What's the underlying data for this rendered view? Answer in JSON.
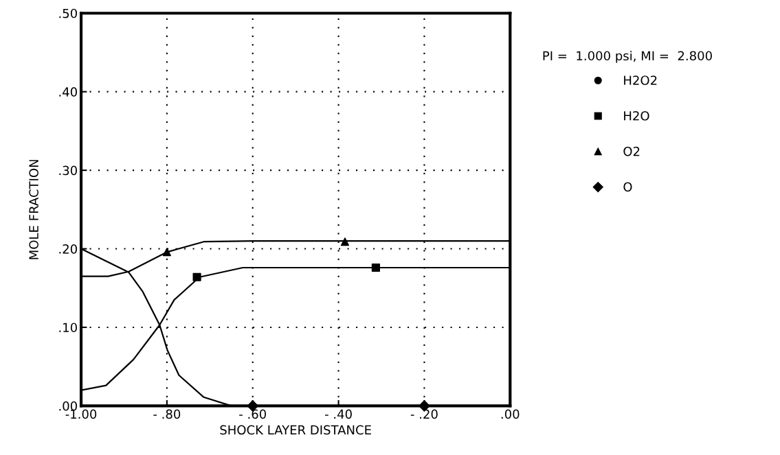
{
  "chart_data": {
    "type": "line",
    "xlabel": "SHOCK LAYER DISTANCE",
    "ylabel": "MOLE FRACTION",
    "annotations": [
      "PI =  1.000 psi, MI =  2.800"
    ],
    "xlim": [
      -1.0,
      0.0
    ],
    "ylim": [
      0.0,
      0.5
    ],
    "xticks": [
      {
        "value": -1.0,
        "label": "-1.00"
      },
      {
        "value": -0.8,
        "label": "- .80"
      },
      {
        "value": -0.6,
        "label": "- .60"
      },
      {
        "value": -0.4,
        "label": "- .40"
      },
      {
        "value": -0.2,
        "label": "- .20"
      },
      {
        "value": 0.0,
        "label": ".00"
      }
    ],
    "yticks": [
      {
        "value": 0.0,
        "label": ".00"
      },
      {
        "value": 0.1,
        "label": ".10"
      },
      {
        "value": 0.2,
        "label": ".20"
      },
      {
        "value": 0.3,
        "label": ".30"
      },
      {
        "value": 0.4,
        "label": ".40"
      },
      {
        "value": 0.5,
        "label": ".50"
      }
    ],
    "grid": true,
    "legend": "right",
    "series": [
      {
        "color": "#000000",
        "marker": "none",
        "x": [
          -1.0,
          -0.889,
          -0.857,
          -0.817,
          -0.799,
          -0.772,
          -0.714,
          -0.65,
          -0.6,
          -0.2,
          0.0
        ],
        "values": [
          0.2,
          0.17,
          0.146,
          0.103,
          0.071,
          0.039,
          0.011,
          0.0,
          0.0,
          0.0,
          0.0
        ]
      },
      {
        "color": "#000000",
        "marker": "none",
        "x": [
          -1.0,
          -0.937,
          -0.889,
          -0.799,
          -0.714,
          -0.6,
          0.0
        ],
        "values": [
          0.165,
          0.165,
          0.171,
          0.196,
          0.209,
          0.21,
          0.21
        ]
      },
      {
        "color": "#000000",
        "marker": "none",
        "x": [
          -1.0,
          -0.942,
          -0.878,
          -0.817,
          -0.783,
          -0.724,
          -0.623,
          -0.5,
          0.0
        ],
        "values": [
          0.02,
          0.026,
          0.059,
          0.103,
          0.135,
          0.164,
          0.176,
          0.176,
          0.176
        ]
      },
      {
        "type": "scatter",
        "name": "H2O2",
        "color": "#000000",
        "marker": "circle"
      },
      {
        "type": "scatter",
        "name": "H2O",
        "color": "#000000",
        "marker": "square",
        "x": [
          -0.73,
          -0.313
        ],
        "values": [
          0.164,
          0.176
        ]
      },
      {
        "type": "scatter",
        "name": "O2",
        "color": "#000000",
        "marker": "triangle",
        "x": [
          -0.8,
          -0.385
        ],
        "values": [
          0.196,
          0.209
        ]
      },
      {
        "type": "scatter",
        "name": "O",
        "color": "#000000",
        "marker": "diamond",
        "x": [
          -0.6,
          -0.2
        ],
        "values": [
          0.0,
          0.0
        ]
      }
    ]
  }
}
